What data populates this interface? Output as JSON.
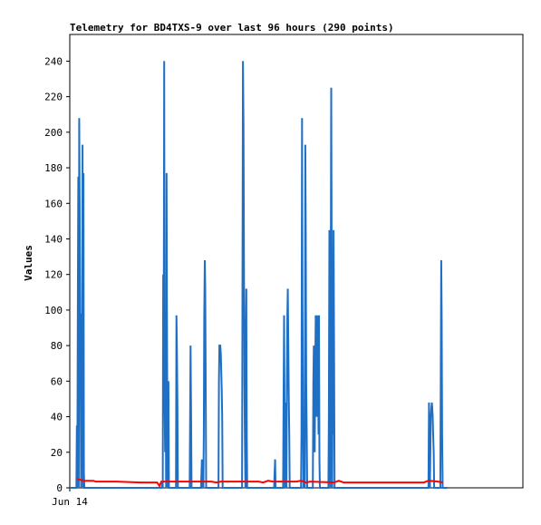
{
  "chart_data": {
    "type": "line",
    "title": "Telemetry for BD4TXS-9 over last 96 hours (290 points)",
    "ylabel": "Values",
    "xlabel": "",
    "x_tick_labels": [
      "Jun 14"
    ],
    "ylim": [
      0,
      255
    ],
    "y_ticks": [
      0,
      20,
      40,
      60,
      80,
      100,
      120,
      140,
      160,
      180,
      200,
      220,
      240
    ],
    "xlim": [
      0,
      96
    ],
    "series": [
      {
        "color": "#1f6fc5",
        "points": [
          [
            0.0,
            0
          ],
          [
            1.4,
            0
          ],
          [
            1.5,
            35
          ],
          [
            1.6,
            0
          ],
          [
            1.7,
            105
          ],
          [
            1.8,
            175
          ],
          [
            1.9,
            0
          ],
          [
            2.0,
            208
          ],
          [
            2.1,
            160
          ],
          [
            2.2,
            95
          ],
          [
            2.3,
            55
          ],
          [
            2.4,
            0
          ],
          [
            2.5,
            98
          ],
          [
            2.6,
            20
          ],
          [
            2.7,
            193
          ],
          [
            2.8,
            0
          ],
          [
            2.9,
            177
          ],
          [
            3.0,
            8
          ],
          [
            3.1,
            0
          ],
          [
            19.5,
            0
          ],
          [
            19.6,
            3
          ],
          [
            19.7,
            0
          ],
          [
            19.8,
            120
          ],
          [
            19.9,
            60
          ],
          [
            20.0,
            240
          ],
          [
            20.1,
            48
          ],
          [
            20.2,
            20
          ],
          [
            20.3,
            88
          ],
          [
            20.4,
            0
          ],
          [
            20.5,
            177
          ],
          [
            20.6,
            88
          ],
          [
            20.7,
            20
          ],
          [
            20.8,
            0
          ],
          [
            20.9,
            60
          ],
          [
            21.0,
            0
          ],
          [
            22.5,
            0
          ],
          [
            22.6,
            97
          ],
          [
            22.7,
            80
          ],
          [
            22.8,
            48
          ],
          [
            22.9,
            0
          ],
          [
            25.4,
            0
          ],
          [
            25.5,
            40
          ],
          [
            25.6,
            80
          ],
          [
            25.7,
            40
          ],
          [
            25.8,
            0
          ],
          [
            27.8,
            0
          ],
          [
            27.9,
            8
          ],
          [
            28.0,
            16
          ],
          [
            28.1,
            0
          ],
          [
            28.2,
            16
          ],
          [
            28.3,
            0
          ],
          [
            28.4,
            30
          ],
          [
            28.5,
            97
          ],
          [
            28.6,
            128
          ],
          [
            28.7,
            112
          ],
          [
            28.8,
            60
          ],
          [
            28.9,
            0
          ],
          [
            31.5,
            0
          ],
          [
            31.6,
            60
          ],
          [
            31.7,
            80
          ],
          [
            31.8,
            80
          ],
          [
            31.9,
            80
          ],
          [
            32.0,
            75
          ],
          [
            32.1,
            65
          ],
          [
            32.2,
            55
          ],
          [
            32.3,
            40
          ],
          [
            32.4,
            0
          ],
          [
            36.5,
            0
          ],
          [
            36.6,
            120
          ],
          [
            36.7,
            240
          ],
          [
            36.8,
            204
          ],
          [
            36.9,
            130
          ],
          [
            37.0,
            60
          ],
          [
            37.1,
            30
          ],
          [
            37.2,
            0
          ],
          [
            37.3,
            85
          ],
          [
            37.4,
            112
          ],
          [
            37.5,
            30
          ],
          [
            37.6,
            0
          ],
          [
            43.3,
            0
          ],
          [
            43.4,
            8
          ],
          [
            43.5,
            16
          ],
          [
            43.6,
            0
          ],
          [
            45.2,
            0
          ],
          [
            45.3,
            48
          ],
          [
            45.4,
            97
          ],
          [
            45.5,
            48
          ],
          [
            45.6,
            0
          ],
          [
            45.7,
            40
          ],
          [
            45.8,
            48
          ],
          [
            45.9,
            0
          ],
          [
            46.0,
            60
          ],
          [
            46.1,
            97
          ],
          [
            46.2,
            112
          ],
          [
            46.3,
            84
          ],
          [
            46.4,
            50
          ],
          [
            46.5,
            30
          ],
          [
            46.6,
            0
          ],
          [
            49.0,
            0
          ],
          [
            49.1,
            30
          ],
          [
            49.2,
            208
          ],
          [
            49.3,
            104
          ],
          [
            49.4,
            60
          ],
          [
            49.5,
            0
          ],
          [
            49.6,
            8
          ],
          [
            49.7,
            16
          ],
          [
            49.8,
            0
          ],
          [
            49.9,
            193
          ],
          [
            50.0,
            145
          ],
          [
            50.1,
            60
          ],
          [
            50.2,
            30
          ],
          [
            50.3,
            0
          ],
          [
            51.5,
            0
          ],
          [
            51.6,
            60
          ],
          [
            51.7,
            80
          ],
          [
            51.8,
            60
          ],
          [
            51.9,
            20
          ],
          [
            52.0,
            64
          ],
          [
            52.1,
            97
          ],
          [
            52.2,
            64
          ],
          [
            52.3,
            40
          ],
          [
            52.4,
            97
          ],
          [
            52.5,
            80
          ],
          [
            52.6,
            64
          ],
          [
            52.7,
            30
          ],
          [
            52.8,
            97
          ],
          [
            52.9,
            16
          ],
          [
            53.0,
            0
          ],
          [
            54.8,
            0
          ],
          [
            54.9,
            40
          ],
          [
            55.0,
            145
          ],
          [
            55.1,
            72
          ],
          [
            55.2,
            0
          ],
          [
            55.3,
            112
          ],
          [
            55.4,
            225
          ],
          [
            55.5,
            112
          ],
          [
            55.6,
            0
          ],
          [
            55.7,
            72
          ],
          [
            55.8,
            30
          ],
          [
            55.9,
            145
          ],
          [
            56.0,
            72
          ],
          [
            56.1,
            0
          ],
          [
            76.0,
            0
          ],
          [
            76.1,
            48
          ],
          [
            76.2,
            24
          ],
          [
            76.3,
            0
          ],
          [
            76.4,
            20
          ],
          [
            76.5,
            40
          ],
          [
            76.6,
            45
          ],
          [
            76.7,
            48
          ],
          [
            76.8,
            45
          ],
          [
            76.9,
            40
          ],
          [
            77.0,
            30
          ],
          [
            77.1,
            20
          ],
          [
            77.2,
            0
          ],
          [
            78.5,
            0
          ],
          [
            78.6,
            64
          ],
          [
            78.7,
            128
          ],
          [
            78.8,
            97
          ],
          [
            78.9,
            30
          ],
          [
            79.0,
            0
          ],
          [
            80.0,
            0
          ]
        ]
      },
      {
        "color": "#ff0000",
        "points": [
          [
            1.5,
            5
          ],
          [
            3.0,
            4
          ],
          [
            5.0,
            4
          ],
          [
            5.5,
            3.5
          ],
          [
            10.0,
            3.5
          ],
          [
            15.0,
            3
          ],
          [
            18.5,
            3
          ],
          [
            19.0,
            1
          ],
          [
            19.4,
            3.5
          ],
          [
            22.0,
            3.5
          ],
          [
            30.0,
            3.5
          ],
          [
            31.0,
            3
          ],
          [
            32.0,
            3.5
          ],
          [
            40.0,
            3.5
          ],
          [
            41.0,
            3
          ],
          [
            42.0,
            4
          ],
          [
            43.0,
            3.5
          ],
          [
            48.0,
            3.5
          ],
          [
            49.0,
            4
          ],
          [
            50.0,
            3
          ],
          [
            51.0,
            3.5
          ],
          [
            56.0,
            3
          ],
          [
            57.0,
            4
          ],
          [
            58.0,
            3
          ],
          [
            60.0,
            3
          ],
          [
            70.0,
            3
          ],
          [
            75.0,
            3
          ],
          [
            76.0,
            4
          ],
          [
            78.0,
            3.5
          ],
          [
            79.0,
            3
          ]
        ]
      }
    ]
  }
}
